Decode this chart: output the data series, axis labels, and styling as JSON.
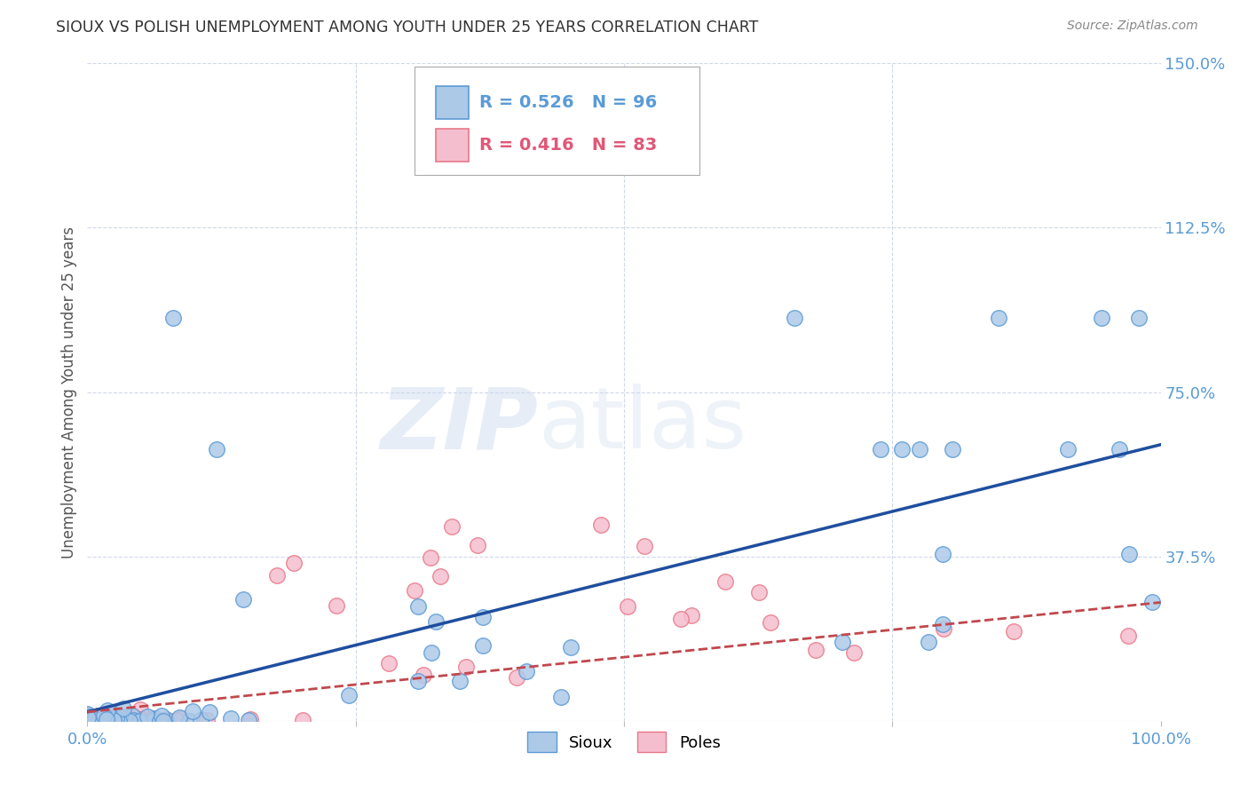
{
  "title": "SIOUX VS POLISH UNEMPLOYMENT AMONG YOUTH UNDER 25 YEARS CORRELATION CHART",
  "source": "Source: ZipAtlas.com",
  "ylabel": "Unemployment Among Youth under 25 years",
  "xlim": [
    0.0,
    1.0
  ],
  "ylim": [
    0.0,
    1.5
  ],
  "xtick_vals": [
    0.0,
    0.25,
    0.5,
    0.75,
    1.0
  ],
  "xtick_labels": [
    "0.0%",
    "",
    "",
    "",
    "100.0%"
  ],
  "ytick_vals": [
    0.0,
    0.375,
    0.75,
    1.125,
    1.5
  ],
  "ytick_labels": [
    "",
    "37.5%",
    "75.0%",
    "112.5%",
    "150.0%"
  ],
  "sioux_color": "#adc9e8",
  "sioux_edge_color": "#5b9bd5",
  "poles_color": "#f5bece",
  "poles_edge_color": "#e8788a",
  "sioux_R": 0.526,
  "sioux_N": 96,
  "poles_R": 0.416,
  "poles_N": 83,
  "blue_line_color": "#1f4e9e",
  "pink_line_color": "#c0484e",
  "background_color": "#ffffff",
  "grid_color": "#d0d8e8",
  "tick_color": "#5b9bd5",
  "title_color": "#333333",
  "source_color": "#888888",
  "blue_line_y0": 0.02,
  "blue_line_y1": 0.63,
  "pink_line_y0": 0.02,
  "pink_line_y1": 0.27
}
